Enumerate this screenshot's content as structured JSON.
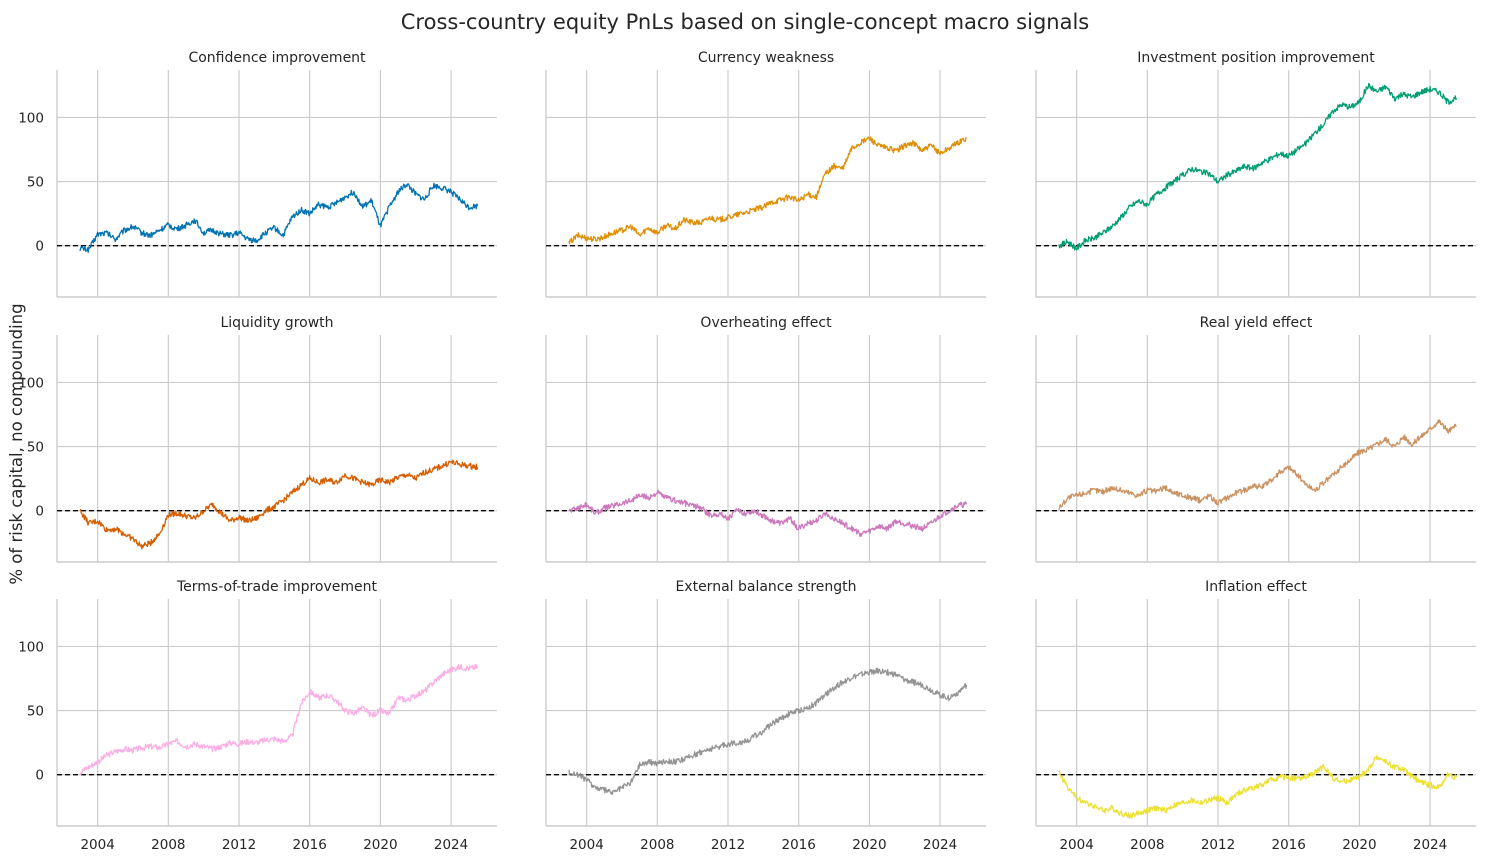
{
  "title": "Cross-country equity PnLs based on single-concept macro signals",
  "ylabel": "% of risk capital, no compounding",
  "chart_data": [
    {
      "type": "line",
      "title": "Confidence improvement",
      "color": "#0173b2",
      "x": [
        2003.0,
        2003.5,
        2004.0,
        2004.5,
        2005.0,
        2005.5,
        2006.0,
        2006.5,
        2007.0,
        2007.5,
        2008.0,
        2008.5,
        2009.0,
        2009.5,
        2010.0,
        2010.5,
        2011.0,
        2011.5,
        2012.0,
        2012.5,
        2013.0,
        2013.5,
        2014.0,
        2014.5,
        2015.0,
        2015.5,
        2016.0,
        2016.5,
        2017.0,
        2017.5,
        2018.0,
        2018.5,
        2019.0,
        2019.5,
        2020.0,
        2020.5,
        2021.0,
        2021.5,
        2022.0,
        2022.5,
        2023.0,
        2023.5,
        2024.0,
        2024.5,
        2025.0,
        2025.5
      ],
      "y": [
        -2,
        -3,
        9,
        10,
        5,
        12,
        15,
        10,
        8,
        12,
        16,
        13,
        16,
        20,
        10,
        12,
        9,
        8,
        10,
        5,
        4,
        10,
        14,
        8,
        22,
        28,
        25,
        32,
        30,
        33,
        38,
        42,
        30,
        35,
        15,
        30,
        42,
        48,
        40,
        36,
        47,
        45,
        42,
        36,
        30,
        31
      ]
    },
    {
      "type": "line",
      "title": "Currency weakness",
      "color": "#de8f05",
      "x": [
        2003.0,
        2003.5,
        2004.0,
        2004.5,
        2005.0,
        2005.5,
        2006.0,
        2006.5,
        2007.0,
        2007.5,
        2008.0,
        2008.5,
        2009.0,
        2009.5,
        2010.0,
        2010.5,
        2011.0,
        2011.5,
        2012.0,
        2012.5,
        2013.0,
        2013.5,
        2014.0,
        2014.5,
        2015.0,
        2015.5,
        2016.0,
        2016.5,
        2017.0,
        2017.5,
        2018.0,
        2018.5,
        2019.0,
        2019.5,
        2020.0,
        2020.5,
        2021.0,
        2021.5,
        2022.0,
        2022.5,
        2023.0,
        2023.5,
        2024.0,
        2024.5,
        2025.0,
        2025.5
      ],
      "y": [
        2,
        8,
        6,
        5,
        7,
        10,
        12,
        15,
        8,
        14,
        10,
        16,
        13,
        20,
        18,
        18,
        22,
        20,
        22,
        24,
        26,
        28,
        30,
        34,
        36,
        38,
        35,
        40,
        38,
        56,
        62,
        60,
        76,
        80,
        84,
        78,
        76,
        74,
        78,
        80,
        74,
        78,
        72,
        76,
        80,
        84
      ]
    },
    {
      "type": "line",
      "title": "Investment position improvement",
      "color": "#029e73",
      "x": [
        2003.0,
        2003.5,
        2004.0,
        2004.5,
        2005.0,
        2005.5,
        2006.0,
        2006.5,
        2007.0,
        2007.5,
        2008.0,
        2008.5,
        2009.0,
        2009.5,
        2010.0,
        2010.5,
        2011.0,
        2011.5,
        2012.0,
        2012.5,
        2013.0,
        2013.5,
        2014.0,
        2014.5,
        2015.0,
        2015.5,
        2016.0,
        2016.5,
        2017.0,
        2017.5,
        2018.0,
        2018.5,
        2019.0,
        2019.5,
        2020.0,
        2020.5,
        2021.0,
        2021.5,
        2022.0,
        2022.5,
        2023.0,
        2023.5,
        2024.0,
        2024.5,
        2025.0,
        2025.5
      ],
      "y": [
        0,
        3,
        -2,
        4,
        6,
        10,
        15,
        22,
        30,
        35,
        32,
        40,
        45,
        50,
        55,
        60,
        58,
        56,
        50,
        55,
        58,
        62,
        60,
        65,
        68,
        72,
        70,
        75,
        80,
        88,
        95,
        105,
        110,
        108,
        112,
        125,
        120,
        124,
        115,
        118,
        116,
        120,
        122,
        120,
        112,
        115
      ]
    },
    {
      "type": "line",
      "title": "Liquidity growth",
      "color": "#d55e00",
      "x": [
        2003.0,
        2003.5,
        2004.0,
        2004.5,
        2005.0,
        2005.5,
        2006.0,
        2006.5,
        2007.0,
        2007.5,
        2008.0,
        2008.5,
        2009.0,
        2009.5,
        2010.0,
        2010.5,
        2011.0,
        2011.5,
        2012.0,
        2012.5,
        2013.0,
        2013.5,
        2014.0,
        2014.5,
        2015.0,
        2015.5,
        2016.0,
        2016.5,
        2017.0,
        2017.5,
        2018.0,
        2018.5,
        2019.0,
        2019.5,
        2020.0,
        2020.5,
        2021.0,
        2021.5,
        2022.0,
        2022.5,
        2023.0,
        2023.5,
        2024.0,
        2024.5,
        2025.0,
        2025.5
      ],
      "y": [
        0,
        -10,
        -8,
        -15,
        -14,
        -18,
        -22,
        -28,
        -25,
        -18,
        -3,
        -2,
        -4,
        -6,
        0,
        5,
        -2,
        -8,
        -5,
        -8,
        -6,
        0,
        3,
        8,
        14,
        20,
        25,
        22,
        24,
        22,
        28,
        25,
        22,
        20,
        24,
        22,
        26,
        28,
        25,
        30,
        32,
        35,
        38,
        36,
        35,
        34
      ]
    },
    {
      "type": "line",
      "title": "Overheating effect",
      "color": "#cc78bc",
      "x": [
        2003.0,
        2003.5,
        2004.0,
        2004.5,
        2005.0,
        2005.5,
        2006.0,
        2006.5,
        2007.0,
        2007.5,
        2008.0,
        2008.5,
        2009.0,
        2009.5,
        2010.0,
        2010.5,
        2011.0,
        2011.5,
        2012.0,
        2012.5,
        2013.0,
        2013.5,
        2014.0,
        2014.5,
        2015.0,
        2015.5,
        2016.0,
        2016.5,
        2017.0,
        2017.5,
        2018.0,
        2018.5,
        2019.0,
        2019.5,
        2020.0,
        2020.5,
        2021.0,
        2021.5,
        2022.0,
        2022.5,
        2023.0,
        2023.5,
        2024.0,
        2024.5,
        2025.0,
        2025.5
      ],
      "y": [
        0,
        2,
        5,
        -2,
        2,
        4,
        6,
        8,
        12,
        10,
        14,
        10,
        8,
        6,
        4,
        2,
        -4,
        -2,
        -6,
        0,
        -2,
        0,
        -4,
        -8,
        -10,
        -6,
        -14,
        -10,
        -8,
        -2,
        -6,
        -10,
        -14,
        -18,
        -16,
        -12,
        -14,
        -8,
        -10,
        -12,
        -14,
        -10,
        -4,
        0,
        4,
        5
      ]
    },
    {
      "type": "line",
      "title": "Real yield effect",
      "color": "#ca9161",
      "x": [
        2003.0,
        2003.5,
        2004.0,
        2004.5,
        2005.0,
        2005.5,
        2006.0,
        2006.5,
        2007.0,
        2007.5,
        2008.0,
        2008.5,
        2009.0,
        2009.5,
        2010.0,
        2010.5,
        2011.0,
        2011.5,
        2012.0,
        2012.5,
        2013.0,
        2013.5,
        2014.0,
        2014.5,
        2015.0,
        2015.5,
        2016.0,
        2016.5,
        2017.0,
        2017.5,
        2018.0,
        2018.5,
        2019.0,
        2019.5,
        2020.0,
        2020.5,
        2021.0,
        2021.5,
        2022.0,
        2022.5,
        2023.0,
        2023.5,
        2024.0,
        2024.5,
        2025.0,
        2025.5
      ],
      "y": [
        2,
        10,
        12,
        14,
        16,
        15,
        18,
        16,
        14,
        12,
        16,
        15,
        18,
        14,
        12,
        10,
        8,
        12,
        6,
        10,
        14,
        16,
        20,
        18,
        24,
        30,
        34,
        28,
        20,
        16,
        22,
        28,
        34,
        40,
        46,
        48,
        52,
        56,
        50,
        58,
        52,
        58,
        64,
        70,
        62,
        66
      ]
    },
    {
      "type": "line",
      "title": "Terms-of-trade improvement",
      "color": "#fbafe4",
      "x": [
        2003.0,
        2003.5,
        2004.0,
        2004.5,
        2005.0,
        2005.5,
        2006.0,
        2006.5,
        2007.0,
        2007.5,
        2008.0,
        2008.5,
        2009.0,
        2009.5,
        2010.0,
        2010.5,
        2011.0,
        2011.5,
        2012.0,
        2012.5,
        2013.0,
        2013.5,
        2014.0,
        2014.5,
        2015.0,
        2015.5,
        2016.0,
        2016.5,
        2017.0,
        2017.5,
        2018.0,
        2018.5,
        2019.0,
        2019.5,
        2020.0,
        2020.5,
        2021.0,
        2021.5,
        2022.0,
        2022.5,
        2023.0,
        2023.5,
        2024.0,
        2024.5,
        2025.0,
        2025.5
      ],
      "y": [
        2,
        6,
        10,
        15,
        18,
        20,
        19,
        21,
        22,
        21,
        24,
        26,
        22,
        24,
        22,
        20,
        22,
        25,
        24,
        26,
        25,
        27,
        28,
        26,
        30,
        55,
        65,
        60,
        62,
        58,
        50,
        48,
        52,
        46,
        50,
        47,
        60,
        58,
        62,
        65,
        72,
        78,
        82,
        84,
        83,
        84
      ]
    },
    {
      "type": "line",
      "title": "External balance strength",
      "color": "#949494",
      "x": [
        2003.0,
        2003.5,
        2004.0,
        2004.5,
        2005.0,
        2005.5,
        2006.0,
        2006.5,
        2007.0,
        2007.5,
        2008.0,
        2008.5,
        2009.0,
        2009.5,
        2010.0,
        2010.5,
        2011.0,
        2011.5,
        2012.0,
        2012.5,
        2013.0,
        2013.5,
        2014.0,
        2014.5,
        2015.0,
        2015.5,
        2016.0,
        2016.5,
        2017.0,
        2017.5,
        2018.0,
        2018.5,
        2019.0,
        2019.5,
        2020.0,
        2020.5,
        2021.0,
        2021.5,
        2022.0,
        2022.5,
        2023.0,
        2023.5,
        2024.0,
        2024.5,
        2025.0,
        2025.5
      ],
      "y": [
        2,
        0,
        -4,
        -10,
        -12,
        -14,
        -10,
        -6,
        8,
        10,
        9,
        11,
        10,
        12,
        15,
        18,
        20,
        22,
        24,
        25,
        26,
        30,
        34,
        40,
        44,
        48,
        50,
        52,
        56,
        62,
        68,
        72,
        76,
        78,
        80,
        81,
        80,
        78,
        74,
        72,
        70,
        66,
        62,
        60,
        64,
        70
      ]
    },
    {
      "type": "line",
      "title": "Inflation effect",
      "color": "#ece133",
      "x": [
        2003.0,
        2003.5,
        2004.0,
        2004.5,
        2005.0,
        2005.5,
        2006.0,
        2006.5,
        2007.0,
        2007.5,
        2008.0,
        2008.5,
        2009.0,
        2009.5,
        2010.0,
        2010.5,
        2011.0,
        2011.5,
        2012.0,
        2012.5,
        2013.0,
        2013.5,
        2014.0,
        2014.5,
        2015.0,
        2015.5,
        2016.0,
        2016.5,
        2017.0,
        2017.5,
        2018.0,
        2018.5,
        2019.0,
        2019.5,
        2020.0,
        2020.5,
        2021.0,
        2021.5,
        2022.0,
        2022.5,
        2023.0,
        2023.5,
        2024.0,
        2024.5,
        2025.0,
        2025.5
      ],
      "y": [
        2,
        -10,
        -18,
        -22,
        -24,
        -28,
        -26,
        -30,
        -32,
        -30,
        -28,
        -26,
        -28,
        -24,
        -22,
        -20,
        -22,
        -20,
        -18,
        -22,
        -16,
        -12,
        -10,
        -8,
        -4,
        -2,
        -2,
        -3,
        -2,
        2,
        6,
        -2,
        -6,
        -4,
        -2,
        4,
        14,
        10,
        6,
        4,
        -2,
        -6,
        -8,
        -10,
        0,
        -2
      ]
    }
  ],
  "axes": {
    "xlim": [
      2001.7,
      2026.6
    ],
    "ylim": [
      -40,
      137
    ],
    "xticks": [
      2004,
      2008,
      2012,
      2016,
      2020,
      2024
    ],
    "xtick_labels": [
      "2004",
      "2008",
      "2012",
      "2016",
      "2020",
      "2024"
    ],
    "yticks": [
      0,
      50,
      100
    ],
    "ytick_labels": [
      "0",
      "50",
      "100"
    ],
    "grid": true,
    "zero_line": "dashed black"
  }
}
